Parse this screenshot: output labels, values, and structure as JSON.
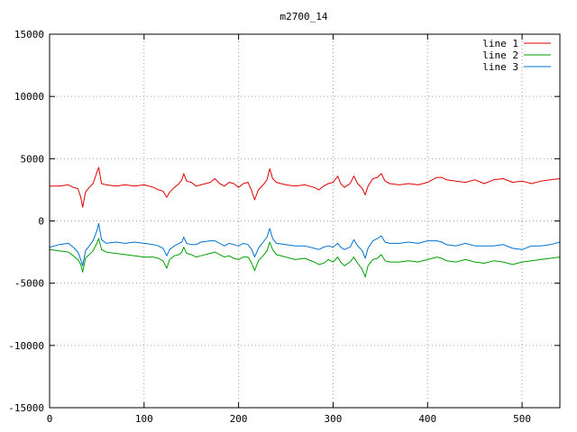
{
  "chart_data": {
    "type": "line",
    "title": "m2700_14",
    "xlabel": "",
    "ylabel": "",
    "xlim": [
      0,
      540
    ],
    "ylim": [
      -15000,
      15000
    ],
    "xticks": [
      0,
      100,
      200,
      300,
      400,
      500
    ],
    "yticks": [
      -15000,
      -10000,
      -5000,
      0,
      5000,
      10000,
      15000
    ],
    "xtick_labels": [
      "0",
      "100",
      "200",
      "300",
      "400",
      "500"
    ],
    "ytick_labels": [
      "-15000",
      "-10000",
      "-5000",
      "0",
      "5000",
      "10000",
      "15000"
    ],
    "grid": true,
    "legend_position": "top-right",
    "series": [
      {
        "name": "line 1",
        "color": "#e00000",
        "points": [
          [
            0,
            2800
          ],
          [
            10,
            2800
          ],
          [
            20,
            2900
          ],
          [
            25,
            2700
          ],
          [
            30,
            2600
          ],
          [
            33,
            1900
          ],
          [
            35,
            1100
          ],
          [
            38,
            2300
          ],
          [
            42,
            2700
          ],
          [
            46,
            3000
          ],
          [
            50,
            3900
          ],
          [
            52,
            4300
          ],
          [
            55,
            3000
          ],
          [
            60,
            2900
          ],
          [
            70,
            2800
          ],
          [
            80,
            2900
          ],
          [
            90,
            2800
          ],
          [
            100,
            2900
          ],
          [
            110,
            2700
          ],
          [
            115,
            2500
          ],
          [
            120,
            2400
          ],
          [
            124,
            1900
          ],
          [
            127,
            2300
          ],
          [
            132,
            2700
          ],
          [
            137,
            3000
          ],
          [
            140,
            3300
          ],
          [
            142,
            3800
          ],
          [
            145,
            3200
          ],
          [
            150,
            3100
          ],
          [
            155,
            2800
          ],
          [
            160,
            2900
          ],
          [
            170,
            3100
          ],
          [
            175,
            3400
          ],
          [
            180,
            3000
          ],
          [
            185,
            2800
          ],
          [
            190,
            3100
          ],
          [
            195,
            3000
          ],
          [
            200,
            2700
          ],
          [
            205,
            3000
          ],
          [
            210,
            3100
          ],
          [
            214,
            2400
          ],
          [
            217,
            1700
          ],
          [
            221,
            2500
          ],
          [
            226,
            2900
          ],
          [
            230,
            3300
          ],
          [
            233,
            4200
          ],
          [
            236,
            3400
          ],
          [
            240,
            3100
          ],
          [
            250,
            2900
          ],
          [
            260,
            2800
          ],
          [
            270,
            2900
          ],
          [
            280,
            2700
          ],
          [
            285,
            2500
          ],
          [
            290,
            2800
          ],
          [
            295,
            3000
          ],
          [
            300,
            3100
          ],
          [
            305,
            3600
          ],
          [
            308,
            3000
          ],
          [
            312,
            2700
          ],
          [
            318,
            3000
          ],
          [
            322,
            3600
          ],
          [
            326,
            3000
          ],
          [
            331,
            2600
          ],
          [
            334,
            2100
          ],
          [
            337,
            2800
          ],
          [
            342,
            3400
          ],
          [
            347,
            3500
          ],
          [
            351,
            3800
          ],
          [
            355,
            3200
          ],
          [
            360,
            3000
          ],
          [
            370,
            2900
          ],
          [
            380,
            3000
          ],
          [
            390,
            2900
          ],
          [
            400,
            3100
          ],
          [
            410,
            3500
          ],
          [
            415,
            3500
          ],
          [
            420,
            3300
          ],
          [
            430,
            3200
          ],
          [
            440,
            3100
          ],
          [
            450,
            3300
          ],
          [
            460,
            3000
          ],
          [
            470,
            3300
          ],
          [
            480,
            3400
          ],
          [
            490,
            3100
          ],
          [
            500,
            3200
          ],
          [
            510,
            3000
          ],
          [
            520,
            3200
          ],
          [
            530,
            3300
          ],
          [
            540,
            3400
          ]
        ]
      },
      {
        "name": "line 2",
        "color": "#00a000",
        "points": [
          [
            0,
            -2300
          ],
          [
            10,
            -2400
          ],
          [
            20,
            -2500
          ],
          [
            25,
            -2800
          ],
          [
            30,
            -3100
          ],
          [
            33,
            -3500
          ],
          [
            35,
            -4100
          ],
          [
            38,
            -3000
          ],
          [
            42,
            -2700
          ],
          [
            46,
            -2400
          ],
          [
            50,
            -1800
          ],
          [
            52,
            -1400
          ],
          [
            55,
            -2300
          ],
          [
            60,
            -2500
          ],
          [
            70,
            -2600
          ],
          [
            80,
            -2700
          ],
          [
            90,
            -2800
          ],
          [
            100,
            -2900
          ],
          [
            110,
            -2900
          ],
          [
            115,
            -3000
          ],
          [
            120,
            -3200
          ],
          [
            124,
            -3800
          ],
          [
            127,
            -3100
          ],
          [
            132,
            -2800
          ],
          [
            137,
            -2700
          ],
          [
            140,
            -2500
          ],
          [
            142,
            -2100
          ],
          [
            145,
            -2600
          ],
          [
            150,
            -2700
          ],
          [
            155,
            -2900
          ],
          [
            160,
            -2800
          ],
          [
            170,
            -2600
          ],
          [
            175,
            -2500
          ],
          [
            180,
            -2700
          ],
          [
            185,
            -2900
          ],
          [
            190,
            -2800
          ],
          [
            195,
            -3000
          ],
          [
            200,
            -3100
          ],
          [
            205,
            -2900
          ],
          [
            210,
            -2900
          ],
          [
            214,
            -3400
          ],
          [
            217,
            -4000
          ],
          [
            221,
            -3200
          ],
          [
            226,
            -2800
          ],
          [
            230,
            -2400
          ],
          [
            233,
            -1700
          ],
          [
            236,
            -2300
          ],
          [
            240,
            -2700
          ],
          [
            250,
            -2900
          ],
          [
            260,
            -3100
          ],
          [
            270,
            -3000
          ],
          [
            280,
            -3300
          ],
          [
            285,
            -3500
          ],
          [
            290,
            -3400
          ],
          [
            295,
            -3100
          ],
          [
            300,
            -3300
          ],
          [
            305,
            -2900
          ],
          [
            308,
            -3300
          ],
          [
            312,
            -3600
          ],
          [
            318,
            -3300
          ],
          [
            322,
            -2900
          ],
          [
            326,
            -3400
          ],
          [
            331,
            -3900
          ],
          [
            334,
            -4500
          ],
          [
            337,
            -3600
          ],
          [
            342,
            -3100
          ],
          [
            347,
            -3000
          ],
          [
            351,
            -2700
          ],
          [
            355,
            -3200
          ],
          [
            360,
            -3300
          ],
          [
            370,
            -3300
          ],
          [
            380,
            -3200
          ],
          [
            390,
            -3300
          ],
          [
            400,
            -3100
          ],
          [
            410,
            -2900
          ],
          [
            415,
            -3000
          ],
          [
            420,
            -3200
          ],
          [
            430,
            -3300
          ],
          [
            440,
            -3100
          ],
          [
            450,
            -3300
          ],
          [
            460,
            -3400
          ],
          [
            470,
            -3200
          ],
          [
            480,
            -3300
          ],
          [
            490,
            -3500
          ],
          [
            500,
            -3300
          ],
          [
            510,
            -3200
          ],
          [
            520,
            -3100
          ],
          [
            530,
            -3000
          ],
          [
            540,
            -2900
          ]
        ]
      },
      {
        "name": "line 3",
        "color": "#0070d0",
        "points": [
          [
            0,
            -2100
          ],
          [
            10,
            -1900
          ],
          [
            20,
            -1800
          ],
          [
            25,
            -2100
          ],
          [
            30,
            -2500
          ],
          [
            33,
            -3100
          ],
          [
            35,
            -3600
          ],
          [
            38,
            -2400
          ],
          [
            42,
            -2000
          ],
          [
            46,
            -1600
          ],
          [
            50,
            -800
          ],
          [
            52,
            -200
          ],
          [
            55,
            -1500
          ],
          [
            60,
            -1800
          ],
          [
            70,
            -1700
          ],
          [
            80,
            -1800
          ],
          [
            90,
            -1700
          ],
          [
            100,
            -1800
          ],
          [
            110,
            -1900
          ],
          [
            115,
            -2000
          ],
          [
            120,
            -2200
          ],
          [
            124,
            -2800
          ],
          [
            127,
            -2300
          ],
          [
            132,
            -2000
          ],
          [
            137,
            -1800
          ],
          [
            140,
            -1700
          ],
          [
            142,
            -1300
          ],
          [
            145,
            -1800
          ],
          [
            150,
            -1900
          ],
          [
            155,
            -1900
          ],
          [
            160,
            -1700
          ],
          [
            170,
            -1600
          ],
          [
            175,
            -1600
          ],
          [
            180,
            -1800
          ],
          [
            185,
            -2000
          ],
          [
            190,
            -1800
          ],
          [
            195,
            -1900
          ],
          [
            200,
            -2000
          ],
          [
            205,
            -1800
          ],
          [
            210,
            -1900
          ],
          [
            214,
            -2300
          ],
          [
            217,
            -2900
          ],
          [
            221,
            -2200
          ],
          [
            226,
            -1700
          ],
          [
            230,
            -1300
          ],
          [
            233,
            -600
          ],
          [
            236,
            -1400
          ],
          [
            240,
            -1800
          ],
          [
            250,
            -1900
          ],
          [
            260,
            -2000
          ],
          [
            270,
            -2000
          ],
          [
            280,
            -2200
          ],
          [
            285,
            -2300
          ],
          [
            290,
            -2100
          ],
          [
            295,
            -2000
          ],
          [
            300,
            -2100
          ],
          [
            305,
            -1800
          ],
          [
            308,
            -2100
          ],
          [
            312,
            -2300
          ],
          [
            318,
            -2100
          ],
          [
            322,
            -1500
          ],
          [
            326,
            -2000
          ],
          [
            331,
            -2400
          ],
          [
            334,
            -3000
          ],
          [
            337,
            -2200
          ],
          [
            342,
            -1600
          ],
          [
            347,
            -1400
          ],
          [
            351,
            -1200
          ],
          [
            355,
            -1700
          ],
          [
            360,
            -1800
          ],
          [
            370,
            -1800
          ],
          [
            380,
            -1700
          ],
          [
            390,
            -1800
          ],
          [
            400,
            -1600
          ],
          [
            410,
            -1600
          ],
          [
            415,
            -1700
          ],
          [
            420,
            -1900
          ],
          [
            430,
            -2000
          ],
          [
            440,
            -1800
          ],
          [
            450,
            -2000
          ],
          [
            460,
            -2000
          ],
          [
            470,
            -2000
          ],
          [
            480,
            -1900
          ],
          [
            490,
            -2200
          ],
          [
            500,
            -2300
          ],
          [
            510,
            -2000
          ],
          [
            520,
            -2000
          ],
          [
            530,
            -1900
          ],
          [
            540,
            -1700
          ]
        ]
      }
    ]
  }
}
